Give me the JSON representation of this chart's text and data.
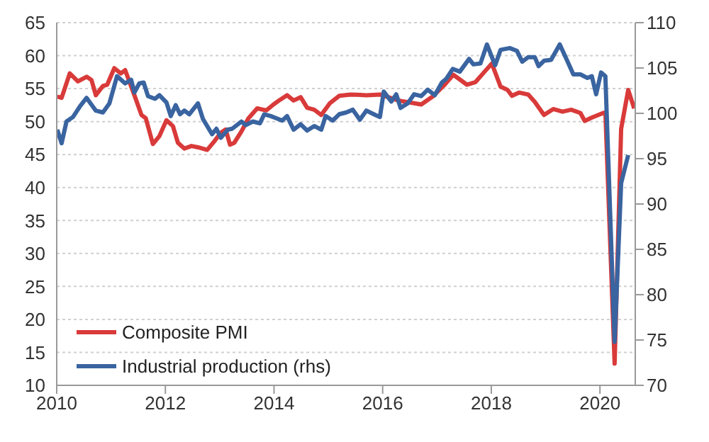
{
  "chart_data": {
    "type": "line",
    "xlim": [
      2010,
      2020.65
    ],
    "xticks": [
      2010,
      2012,
      2014,
      2016,
      2018,
      2020
    ],
    "ylim": [
      10,
      65
    ],
    "yticks": [
      10,
      15,
      20,
      25,
      30,
      35,
      40,
      45,
      50,
      55,
      60,
      65
    ],
    "y2lim": [
      70,
      110
    ],
    "y2ticks": [
      70,
      75,
      80,
      85,
      90,
      95,
      100,
      105,
      110
    ],
    "grid": "y",
    "legend": "bottom left",
    "marker": "none",
    "line_style": "solid",
    "series": [
      {
        "name": "Composite PMI",
        "color": "#d93a3a",
        "x": [
          2010.01,
          2010.09,
          2010.24,
          2010.39,
          2010.55,
          2010.64,
          2010.72,
          2010.85,
          2010.93,
          2011.06,
          2011.18,
          2011.26,
          2011.43,
          2011.56,
          2011.64,
          2011.77,
          2011.89,
          2012.02,
          2012.14,
          2012.23,
          2012.35,
          2012.48,
          2012.6,
          2012.77,
          2012.9,
          2013.02,
          2013.11,
          2013.19,
          2013.27,
          2013.4,
          2013.53,
          2013.69,
          2013.86,
          2013.99,
          2014.11,
          2014.24,
          2014.36,
          2014.49,
          2014.61,
          2014.74,
          2014.87,
          2015.03,
          2015.2,
          2015.41,
          2015.7,
          2015.95,
          2016.29,
          2016.71,
          2016.92,
          2017.13,
          2017.3,
          2017.55,
          2017.71,
          2017.88,
          2018.01,
          2018.17,
          2018.3,
          2018.38,
          2018.51,
          2018.68,
          2018.8,
          2018.97,
          2019.14,
          2019.31,
          2019.47,
          2019.64,
          2019.72,
          2019.85,
          2020.06,
          2020.1,
          2020.27,
          2020.39,
          2020.52,
          2020.63
        ],
        "values": [
          53.8,
          53.6,
          57.3,
          56.1,
          56.8,
          56.3,
          54,
          55.4,
          55.6,
          58.1,
          57.3,
          57.8,
          54,
          51,
          50.5,
          46.6,
          47.8,
          50.2,
          49.3,
          46.8,
          45.9,
          46.3,
          46.1,
          45.7,
          47,
          48.3,
          48.8,
          46.5,
          46.8,
          48.5,
          50.5,
          52,
          51.7,
          52.6,
          53.3,
          54,
          53.2,
          53.7,
          52.1,
          51.8,
          51,
          52.8,
          53.9,
          54.1,
          54,
          54.1,
          53.2,
          52.6,
          53.8,
          55.5,
          57.1,
          55.6,
          56,
          57.6,
          58.8,
          55.3,
          54.8,
          53.9,
          54.4,
          54.1,
          53,
          51,
          51.9,
          51.5,
          51.8,
          51.3,
          50.1,
          50.6,
          51.3,
          51.4,
          13.3,
          48.9,
          54.8,
          52
        ]
      },
      {
        "name": "Industrial production (rhs)",
        "color": "#3a64a0",
        "axis": "y2",
        "x": [
          2010.01,
          2010.09,
          2010.18,
          2010.3,
          2010.43,
          2010.55,
          2010.72,
          2010.85,
          2010.97,
          2011.11,
          2011.26,
          2011.37,
          2011.43,
          2011.52,
          2011.6,
          2011.68,
          2011.81,
          2011.89,
          2012.02,
          2012.1,
          2012.19,
          2012.27,
          2012.35,
          2012.44,
          2012.6,
          2012.69,
          2012.86,
          2012.94,
          2013.02,
          2013.15,
          2013.23,
          2013.4,
          2013.48,
          2013.61,
          2013.74,
          2013.82,
          2013.94,
          2014.07,
          2014.15,
          2014.24,
          2014.36,
          2014.49,
          2014.61,
          2014.74,
          2014.87,
          2014.95,
          2015.08,
          2015.2,
          2015.33,
          2015.45,
          2015.58,
          2015.7,
          2015.87,
          2015.95,
          2016.02,
          2016.16,
          2016.25,
          2016.33,
          2016.46,
          2016.58,
          2016.71,
          2016.83,
          2016.96,
          2017.09,
          2017.17,
          2017.29,
          2017.42,
          2017.59,
          2017.67,
          2017.8,
          2017.92,
          2018.07,
          2018.17,
          2018.34,
          2018.47,
          2018.57,
          2018.68,
          2018.8,
          2018.87,
          2018.97,
          2019.1,
          2019.26,
          2019.39,
          2019.51,
          2019.64,
          2019.77,
          2019.85,
          2019.93,
          2020.02,
          2020.1,
          2020.27,
          2020.39,
          2020.52
        ],
        "values": [
          98.2,
          96.7,
          99.1,
          99.6,
          100.8,
          101.7,
          100.3,
          100.1,
          101.1,
          104.1,
          103.3,
          103.7,
          102.3,
          103.3,
          103.4,
          101.9,
          101.6,
          102,
          101.2,
          99.7,
          100.9,
          99.9,
          100.3,
          99.9,
          101.1,
          99.4,
          97.7,
          98.3,
          97.3,
          98.2,
          98.3,
          99.1,
          98.7,
          99.1,
          98.9,
          99.9,
          99.7,
          99.4,
          99.2,
          99.7,
          98.2,
          98.8,
          98.1,
          98.6,
          98.2,
          99.7,
          99.2,
          99.9,
          100.1,
          100.4,
          99.3,
          100.3,
          99.8,
          99.6,
          102.4,
          101.3,
          102.1,
          100.6,
          101.1,
          102.1,
          101.9,
          102.6,
          102,
          103.4,
          103.8,
          104.9,
          104.6,
          106,
          105.4,
          105.5,
          107.6,
          105.3,
          107,
          107.2,
          106.9,
          105.7,
          106.2,
          106.2,
          105.2,
          105.8,
          105.9,
          107.6,
          105.9,
          104.3,
          104.3,
          103.9,
          104.1,
          102.1,
          104.5,
          104.1,
          74.8,
          92.3,
          95.4
        ]
      }
    ]
  }
}
